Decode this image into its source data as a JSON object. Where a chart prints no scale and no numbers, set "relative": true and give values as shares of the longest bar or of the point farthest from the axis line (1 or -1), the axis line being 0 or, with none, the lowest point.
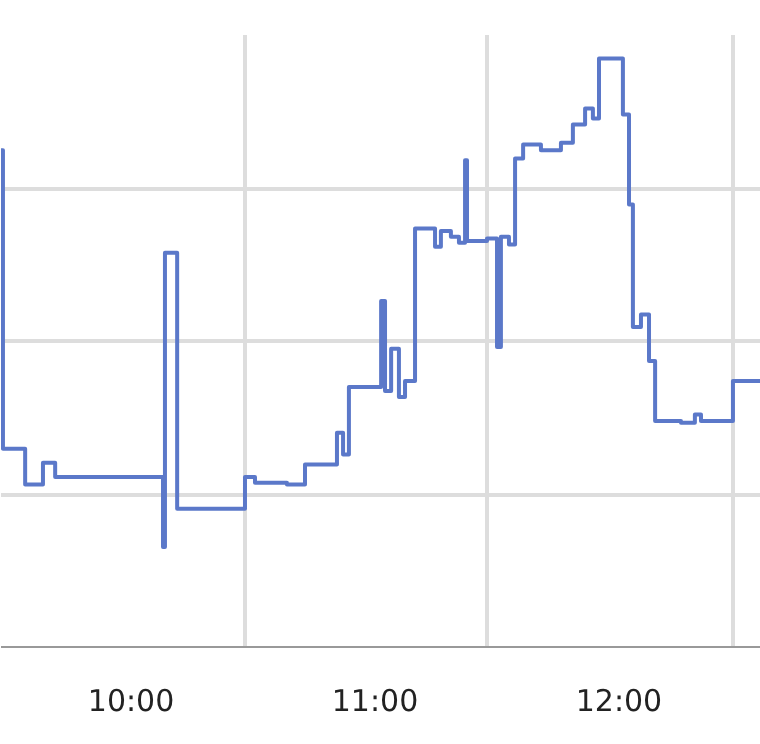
{
  "chart_data": {
    "type": "step",
    "relative": true,
    "grid": true,
    "xlim": [
      9.467,
      12.582
    ],
    "xticks": [
      {
        "value": 10,
        "label": "10:00"
      },
      {
        "value": 10.467,
        "label": null
      },
      {
        "value": 11,
        "label": "11:00"
      },
      {
        "value": 11.459,
        "label": null
      },
      {
        "value": 12,
        "label": "12:00"
      },
      {
        "value": 12.467,
        "label": null
      }
    ],
    "x": [
      9.467,
      9.475,
      9.566,
      9.639,
      9.689,
      10.131,
      10.139,
      10.189,
      10.467,
      10.508,
      10.639,
      10.713,
      10.844,
      10.869,
      10.893,
      11.025,
      11.041,
      11.066,
      11.098,
      11.123,
      11.164,
      11.246,
      11.27,
      11.311,
      11.344,
      11.369,
      11.377,
      11.459,
      11.5,
      11.516,
      11.549,
      11.574,
      11.607,
      11.68,
      11.762,
      11.811,
      11.861,
      11.893,
      11.918,
      12.016,
      12.041,
      12.057,
      12.09,
      12.123,
      12.148,
      12.254,
      12.311,
      12.336,
      12.467,
      12.582
    ],
    "series": [
      {
        "color": "#5b78c9",
        "values": [
          0.844,
          0.337,
          0.276,
          0.313,
          0.289,
          0.17,
          0.67,
          0.235,
          0.289,
          0.279,
          0.276,
          0.31,
          0.364,
          0.327,
          0.442,
          0.588,
          0.435,
          0.507,
          0.425,
          0.452,
          0.711,
          0.68,
          0.707,
          0.697,
          0.687,
          0.827,
          0.69,
          0.694,
          0.51,
          0.697,
          0.684,
          0.83,
          0.854,
          0.844,
          0.857,
          0.888,
          0.915,
          0.898,
          1.0,
          0.905,
          0.752,
          0.544,
          0.565,
          0.486,
          0.384,
          0.381,
          0.395,
          0.384,
          0.452,
          0.452
        ]
      }
    ]
  }
}
